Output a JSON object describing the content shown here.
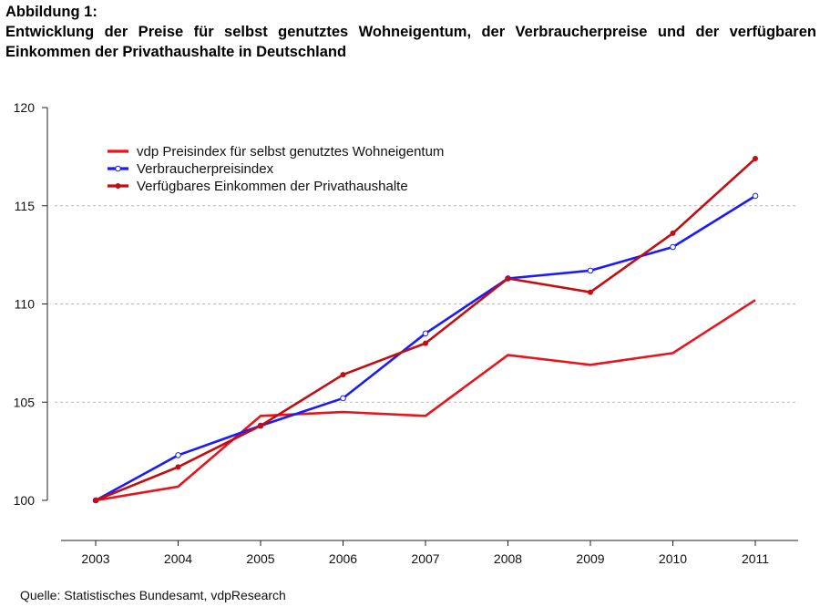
{
  "figure": {
    "label": "Abbildung 1:",
    "title_line1": "Entwicklung der Preise für selbst genutztes Wohneigentum, der Verbraucherpreise und der verfügbaren",
    "title_line2": "Einkommen der Privathaushalte in Deutschland",
    "source": "Quelle: Statistisches Bundesamt, vdpResearch"
  },
  "chart_data": {
    "type": "line",
    "title": "Entwicklung der Preise für selbst genutztes Wohneigentum, der Verbraucherpreise und der verfügbaren Einkommen der Privathaushalte in Deutschland",
    "xlabel": "",
    "ylabel": "",
    "categories": [
      "2003",
      "2004",
      "2005",
      "2006",
      "2007",
      "2008",
      "2009",
      "2010",
      "2011"
    ],
    "ylim": [
      100,
      120
    ],
    "yticks": [
      100,
      105,
      110,
      115,
      120
    ],
    "grid": "horizontal dashed",
    "legend_position": "top-left",
    "series": [
      {
        "name": "vdp Preisindex für selbst genutztes Wohneigentum",
        "values": [
          100.0,
          100.7,
          104.3,
          104.5,
          104.3,
          107.4,
          106.9,
          107.5,
          110.2
        ],
        "color": "#e8141c",
        "marker": "none"
      },
      {
        "name": "Verbraucherpreisindex",
        "values": [
          100.0,
          102.3,
          103.8,
          105.2,
          108.5,
          111.3,
          111.7,
          112.9,
          115.5
        ],
        "color": "#1a1aff",
        "marker": "open-circle"
      },
      {
        "name": "Verfügbares Einkommen der Privathaushalte",
        "values": [
          100.0,
          101.7,
          103.8,
          106.4,
          108.0,
          111.3,
          110.6,
          113.6,
          117.4
        ],
        "color": "#c40d10",
        "marker": "filled-circle"
      }
    ]
  }
}
